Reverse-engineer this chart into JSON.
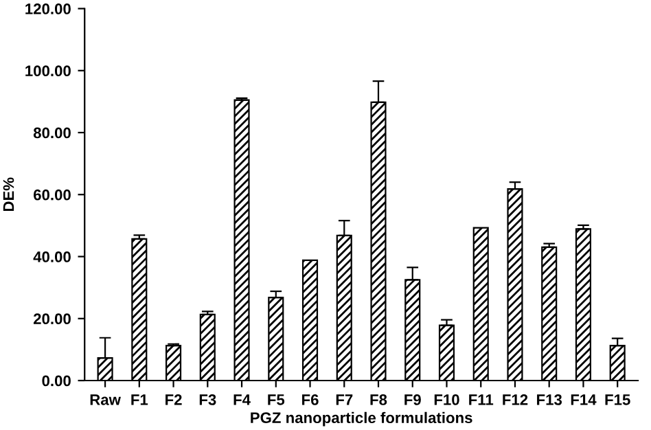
{
  "chart_data": {
    "type": "bar",
    "xlabel": "PGZ nanoparticle formulations",
    "ylabel": "DE%",
    "categories": [
      "Raw",
      "F1",
      "F2",
      "F3",
      "F4",
      "F5",
      "F6",
      "F7",
      "F8",
      "F9",
      "F10",
      "F11",
      "F12",
      "F13",
      "F14",
      "F15"
    ],
    "values": [
      7.3,
      45.7,
      11.3,
      21.3,
      90.5,
      26.8,
      38.8,
      46.8,
      89.8,
      32.5,
      17.8,
      49.3,
      61.8,
      43.0,
      48.9,
      11.3
    ],
    "errors": [
      [
        7.3,
        13.8
      ],
      [
        45.7,
        46.9
      ],
      [
        11.3,
        11.8
      ],
      [
        21.3,
        22.3
      ],
      [
        90.5,
        91.1
      ],
      [
        26.8,
        28.8
      ],
      null,
      [
        46.8,
        51.6
      ],
      [
        89.8,
        96.6
      ],
      [
        32.5,
        36.5
      ],
      [
        17.8,
        19.6
      ],
      null,
      [
        61.8,
        64.0
      ],
      [
        43.0,
        44.2
      ],
      [
        48.9,
        50.1
      ],
      [
        11.3,
        13.6
      ]
    ],
    "color": "#000000",
    "ylim": [
      0,
      120
    ],
    "yticks": [
      {
        "value": 0,
        "label": "0.00"
      },
      {
        "value": 20,
        "label": "20.00"
      },
      {
        "value": 40,
        "label": "40.00"
      },
      {
        "value": 60,
        "label": "60.00"
      },
      {
        "value": 80,
        "label": "80.00"
      },
      {
        "value": 100,
        "label": "100.00"
      },
      {
        "value": 120,
        "label": "120.00"
      }
    ],
    "grid": false,
    "legend": false
  }
}
